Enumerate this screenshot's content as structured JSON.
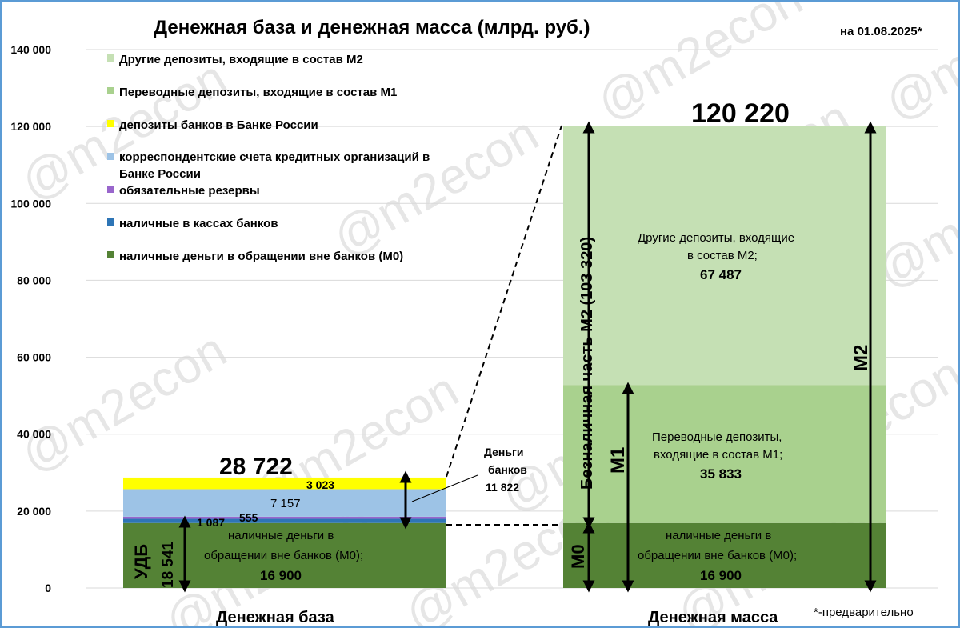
{
  "title": "Денежная база и денежная масса (млрд. руб.)",
  "date_note": "на 01.08.2025*",
  "footnote": "*-предварительно",
  "watermark": "@m2econ",
  "colors": {
    "m0": "#548235",
    "transfer_deposits": "#a9d18e",
    "other_deposits": "#c5e0b4",
    "bank_deposits_cbr": "#ffff00",
    "corr_accounts": "#9dc3e6",
    "reserves": "#9966cc",
    "cash_in_banks": "#2e75b6",
    "grid": "#d9d9d9"
  },
  "chart_data": {
    "type": "bar",
    "stacked": true,
    "ylim": [
      0,
      140000
    ],
    "yticks": [
      0,
      20000,
      40000,
      60000,
      80000,
      100000,
      120000,
      140000
    ],
    "ytick_labels": [
      "0",
      "20 000",
      "40 000",
      "60 000",
      "80 000",
      "100 000",
      "120 000",
      "140 000"
    ],
    "categories": [
      "Денежная база",
      "Денежная масса"
    ],
    "legend_position": "top-left",
    "series": [
      {
        "name": "наличные деньги в обращении вне банков (М0)",
        "key": "m0",
        "values": [
          16900,
          16900
        ]
      },
      {
        "name": "наличные в кассах банков",
        "key": "cash_in_banks",
        "values": [
          1087,
          0
        ]
      },
      {
        "name": "обязательные резервы",
        "key": "reserves",
        "values": [
          555,
          0
        ]
      },
      {
        "name": "корреспондентские счета кредитных организаций в Банке России",
        "key": "corr_accounts",
        "values": [
          7157,
          0
        ]
      },
      {
        "name": "депозиты банков в Банке России",
        "key": "bank_deposits_cbr",
        "values": [
          3023,
          0
        ]
      },
      {
        "name": "Переводные депозиты, входящие в состав М1",
        "key": "transfer_deposits",
        "values": [
          0,
          35833
        ]
      },
      {
        "name": "Другие депозиты, входящие в состав М2",
        "key": "other_deposits",
        "values": [
          0,
          67487
        ]
      }
    ],
    "totals": {
      "base": "28 722",
      "money": "120 220"
    },
    "annotations": {
      "base_m0_line1": "наличные деньги в",
      "base_m0_line2": "обращении вне банков (М0);",
      "base_m0_value": "16 900",
      "base_cash_in_banks": "1 087",
      "base_reserves": "555",
      "base_corr": "7 157",
      "base_deposits": "3 023",
      "udb_label": "УДБ",
      "udb_value": "18 541",
      "bank_money_line1": "Деньги",
      "bank_money_line2": "банков",
      "bank_money_value": "11 822",
      "money_m0_line1": "наличные деньги в",
      "money_m0_line2": "обращении вне банков (М0);",
      "money_m0_value": "16 900",
      "transfer_line1": "Переводные депозиты,",
      "transfer_line2": "входящие в состав М1;",
      "transfer_value": "35 833",
      "other_line1": "Другие депозиты, входящие",
      "other_line2": "в состав М2;",
      "other_value": "67 487",
      "noncash_label": "Безналичная  часть М2 (103 320)",
      "m0_label": "М0",
      "m1_label": "М1",
      "m2_label": "М2"
    }
  },
  "legend": [
    {
      "key": "other_deposits",
      "label": "Другие депозиты, входящие в состав М2"
    },
    {
      "key": "transfer_deposits",
      "label": "Переводные депозиты, входящие в состав М1"
    },
    {
      "key": "bank_deposits_cbr",
      "label": "депозиты банков в Банке России"
    },
    {
      "key": "corr_accounts",
      "label_line1": "корреспондентские счета кредитных организаций в",
      "label_line2": "Банке России"
    },
    {
      "key": "reserves",
      "label": "обязательные резервы"
    },
    {
      "key": "cash_in_banks",
      "label": "наличные в кассах банков"
    },
    {
      "key": "m0",
      "label": "наличные деньги в обращении вне банков (М0)"
    }
  ]
}
